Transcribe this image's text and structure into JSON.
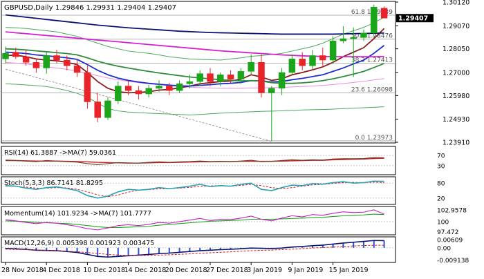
{
  "header": {
    "symbol": "GBPUSD,Daily",
    "ohlc": "1.29846 1.29931 1.29404 1.29407"
  },
  "current_price": "1.29407",
  "chart_data": {
    "type": "candlestick",
    "ylim": [
      1.2391,
      1.3012
    ],
    "grid": false,
    "price_ticks": [
      "1.30120",
      "1.29070",
      "1.28050",
      "1.27000",
      "1.25980",
      "1.24930",
      "1.23910"
    ],
    "date_labels": [
      "28 Nov 2018",
      "4 Dec 2018",
      "10 Dec 2018",
      "14 Dec 2018",
      "20 Dec 2018",
      "27 Dec 2018",
      "3 Jan 2019",
      "9 Jan 2019",
      "15 Jan 2019"
    ],
    "date_label_index": [
      0,
      4,
      8,
      12,
      16,
      20,
      24,
      28,
      32
    ],
    "candles": [
      {
        "o": 1.276,
        "h": 1.2815,
        "l": 1.274,
        "c": 1.2785
      },
      {
        "o": 1.279,
        "h": 1.281,
        "l": 1.276,
        "c": 1.277
      },
      {
        "o": 1.277,
        "h": 1.28,
        "l": 1.273,
        "c": 1.2745
      },
      {
        "o": 1.2745,
        "h": 1.276,
        "l": 1.27,
        "c": 1.272
      },
      {
        "o": 1.272,
        "h": 1.279,
        "l": 1.2695,
        "c": 1.2775
      },
      {
        "o": 1.2775,
        "h": 1.28,
        "l": 1.274,
        "c": 1.2755
      },
      {
        "o": 1.2755,
        "h": 1.2775,
        "l": 1.271,
        "c": 1.273
      },
      {
        "o": 1.273,
        "h": 1.276,
        "l": 1.268,
        "c": 1.27
      },
      {
        "o": 1.27,
        "h": 1.273,
        "l": 1.254,
        "c": 1.257
      },
      {
        "o": 1.257,
        "h": 1.261,
        "l": 1.248,
        "c": 1.25
      },
      {
        "o": 1.25,
        "h": 1.259,
        "l": 1.249,
        "c": 1.2575
      },
      {
        "o": 1.2575,
        "h": 1.266,
        "l": 1.256,
        "c": 1.264
      },
      {
        "o": 1.264,
        "h": 1.2665,
        "l": 1.26,
        "c": 1.262
      },
      {
        "o": 1.262,
        "h": 1.264,
        "l": 1.258,
        "c": 1.2605
      },
      {
        "o": 1.2605,
        "h": 1.2645,
        "l": 1.259,
        "c": 1.263
      },
      {
        "o": 1.263,
        "h": 1.2665,
        "l": 1.2615,
        "c": 1.264
      },
      {
        "o": 1.264,
        "h": 1.2655,
        "l": 1.26,
        "c": 1.262
      },
      {
        "o": 1.262,
        "h": 1.2665,
        "l": 1.261,
        "c": 1.265
      },
      {
        "o": 1.265,
        "h": 1.269,
        "l": 1.263,
        "c": 1.266
      },
      {
        "o": 1.266,
        "h": 1.271,
        "l": 1.264,
        "c": 1.2695
      },
      {
        "o": 1.2695,
        "h": 1.272,
        "l": 1.264,
        "c": 1.266
      },
      {
        "o": 1.266,
        "h": 1.27,
        "l": 1.264,
        "c": 1.269
      },
      {
        "o": 1.269,
        "h": 1.271,
        "l": 1.265,
        "c": 1.267
      },
      {
        "o": 1.267,
        "h": 1.272,
        "l": 1.265,
        "c": 1.2705
      },
      {
        "o": 1.2705,
        "h": 1.278,
        "l": 1.269,
        "c": 1.2745
      },
      {
        "o": 1.2745,
        "h": 1.278,
        "l": 1.259,
        "c": 1.261
      },
      {
        "o": 1.261,
        "h": 1.264,
        "l": 1.2395,
        "c": 1.263
      },
      {
        "o": 1.263,
        "h": 1.272,
        "l": 1.26,
        "c": 1.27
      },
      {
        "o": 1.27,
        "h": 1.278,
        "l": 1.269,
        "c": 1.276
      },
      {
        "o": 1.276,
        "h": 1.279,
        "l": 1.271,
        "c": 1.273
      },
      {
        "o": 1.273,
        "h": 1.28,
        "l": 1.271,
        "c": 1.2775
      },
      {
        "o": 1.2775,
        "h": 1.281,
        "l": 1.273,
        "c": 1.2755
      },
      {
        "o": 1.2755,
        "h": 1.286,
        "l": 1.274,
        "c": 1.284
      },
      {
        "o": 1.284,
        "h": 1.2905,
        "l": 1.283,
        "c": 1.285
      },
      {
        "o": 1.285,
        "h": 1.29,
        "l": 1.268,
        "c": 1.2855
      },
      {
        "o": 1.2855,
        "h": 1.289,
        "l": 1.284,
        "c": 1.2875
      },
      {
        "o": 1.2875,
        "h": 1.3,
        "l": 1.286,
        "c": 1.299
      },
      {
        "o": 1.2985,
        "h": 1.2993,
        "l": 1.294,
        "c": 1.2941
      }
    ],
    "fibonacci": [
      {
        "label": "61.8 1.29539",
        "price": 1.29539
      },
      {
        "label": "50.0 1.28476",
        "price": 1.28476
      },
      {
        "label": "38.2 1.27413",
        "price": 1.27413
      },
      {
        "label": "23.6 1.26098",
        "price": 1.26098
      },
      {
        "label": "0.0 1.23973",
        "price": 1.23973
      }
    ],
    "moving_averages": [
      {
        "color": "#8b1a1a",
        "values": [
          1.2775,
          1.2777,
          1.277,
          1.276,
          1.2755,
          1.2752,
          1.2745,
          1.2735,
          1.27,
          1.266,
          1.263,
          1.2615,
          1.261,
          1.2612,
          1.2615,
          1.2622,
          1.2625,
          1.2632,
          1.264,
          1.265,
          1.2655,
          1.266,
          1.2662,
          1.267,
          1.269,
          1.268,
          1.2665,
          1.2672,
          1.269,
          1.27,
          1.2712,
          1.2725,
          1.2745,
          1.277,
          1.279,
          1.281,
          1.285,
          1.2895
        ]
      },
      {
        "color": "#1c2fc9",
        "values": [
          1.279,
          1.2788,
          1.2784,
          1.2778,
          1.2774,
          1.277,
          1.2765,
          1.2758,
          1.2735,
          1.271,
          1.269,
          1.2675,
          1.2665,
          1.2658,
          1.2652,
          1.2648,
          1.2644,
          1.2641,
          1.264,
          1.2643,
          1.2646,
          1.265,
          1.2652,
          1.2656,
          1.2664,
          1.2663,
          1.2658,
          1.266,
          1.2668,
          1.2674,
          1.2682,
          1.269,
          1.2705,
          1.272,
          1.2738,
          1.2755,
          1.2785,
          1.282
        ]
      },
      {
        "color": "#2e8b3a",
        "values": [
          1.2805,
          1.2803,
          1.28,
          1.2796,
          1.2792,
          1.2788,
          1.2784,
          1.2778,
          1.2765,
          1.275,
          1.2738,
          1.2728,
          1.272,
          1.2712,
          1.2705,
          1.2698,
          1.2692,
          1.2686,
          1.268,
          1.2676,
          1.2672,
          1.2668,
          1.2665,
          1.2663,
          1.2664,
          1.2662,
          1.2655,
          1.2652,
          1.2652,
          1.2654,
          1.2658,
          1.2664,
          1.2672,
          1.2682,
          1.2693,
          1.2705,
          1.2722,
          1.274
        ]
      },
      {
        "color": "#d61fd0",
        "values": [
          1.288,
          1.2876,
          1.2872,
          1.2868,
          1.2864,
          1.286,
          1.2856,
          1.2852,
          1.2848,
          1.2844,
          1.284,
          1.2836,
          1.2832,
          1.2828,
          1.2824,
          1.282,
          1.2816,
          1.2812,
          1.2808,
          1.2804,
          1.28,
          1.2796,
          1.2793,
          1.279,
          1.2787,
          1.2784,
          1.2781,
          1.2778,
          1.2776,
          1.2774,
          1.2772,
          1.2771,
          1.277,
          1.277,
          1.277,
          1.277,
          1.277,
          1.2771
        ]
      },
      {
        "color": "#0a1470",
        "values": [
          1.2955,
          1.295,
          1.2945,
          1.294,
          1.2935,
          1.293,
          1.2925,
          1.292,
          1.2915,
          1.291,
          1.2906,
          1.2902,
          1.2898,
          1.2895,
          1.2892,
          1.2889,
          1.2886,
          1.2883,
          1.2881,
          1.2879,
          1.2877,
          1.2876,
          1.2875,
          1.2874,
          1.2873,
          1.2872,
          1.2871,
          1.287,
          1.287,
          1.287,
          1.287,
          1.287,
          1.287,
          1.2871,
          1.2872,
          1.2873,
          1.2874,
          1.2875
        ]
      }
    ],
    "bollinger_bands": [
      {
        "color": "#e98de3",
        "values": [
          1.2745,
          1.2742,
          1.2738,
          1.2732,
          1.2726,
          1.272,
          1.2714,
          1.2706,
          1.2696,
          1.2686,
          1.2676,
          1.2668,
          1.2661,
          1.2655,
          1.265,
          1.2646,
          1.2642,
          1.2638,
          1.2635,
          1.2633,
          1.2631,
          1.263,
          1.263,
          1.263,
          1.2631,
          1.2632,
          1.2633,
          1.2634,
          1.2636,
          1.2638,
          1.264,
          1.2643,
          1.2647,
          1.2651,
          1.2656,
          1.2661,
          1.2667,
          1.2673
        ]
      },
      {
        "color": "#4aa85a",
        "values": [
          1.29,
          1.2898,
          1.2895,
          1.289,
          1.2885,
          1.288,
          1.287,
          1.286,
          1.2845,
          1.283,
          1.2815,
          1.2805,
          1.2795,
          1.279,
          1.2785,
          1.2778,
          1.277,
          1.2765,
          1.276,
          1.2758,
          1.2757,
          1.2755,
          1.276,
          1.2765,
          1.2772,
          1.2775,
          1.278,
          1.2785,
          1.2795,
          1.2805,
          1.2815,
          1.283,
          1.285,
          1.287,
          1.2885,
          1.29,
          1.292,
          1.2945
        ]
      },
      {
        "color": "#4aa85a",
        "values": [
          1.265,
          1.2648,
          1.2645,
          1.2642,
          1.2638,
          1.263,
          1.262,
          1.2608,
          1.259,
          1.2565,
          1.254,
          1.253,
          1.2525,
          1.2522,
          1.252,
          1.2518,
          1.2516,
          1.2514,
          1.2512,
          1.2514,
          1.2517,
          1.252,
          1.2522,
          1.2524,
          1.2526,
          1.2528,
          1.2529,
          1.253,
          1.2532,
          1.2534,
          1.2535,
          1.2536,
          1.2538,
          1.254,
          1.2542,
          1.2544,
          1.2546,
          1.2548
        ]
      }
    ],
    "trendline": {
      "from_index": 0,
      "from_price": 1.2715,
      "to_index": 26,
      "to_price": 1.2395
    },
    "indicators": {
      "rsi": {
        "label": "RSI(14) 61.3887 ->MA(7) 59.0361",
        "ticks": [
          "70",
          "30"
        ],
        "ylim": [
          0,
          100
        ],
        "levels": [
          70,
          30
        ],
        "rsi_values": [
          52,
          50,
          48,
          46,
          50,
          48,
          46,
          44,
          38,
          34,
          38,
          42,
          41,
          40,
          43,
          45,
          43,
          45,
          46,
          48,
          46,
          47,
          46,
          48,
          51,
          46,
          47,
          50,
          53,
          51,
          53,
          52,
          56,
          57,
          57,
          58,
          62,
          61
        ],
        "ma_values": [
          50,
          50,
          49,
          48,
          48,
          48,
          47,
          46,
          45,
          43,
          42,
          41,
          40,
          40,
          41,
          42,
          42,
          43,
          44,
          45,
          45,
          46,
          46,
          47,
          47,
          47,
          47,
          48,
          49,
          50,
          51,
          51,
          53,
          54,
          55,
          56,
          58,
          59
        ]
      },
      "stochastic": {
        "label": "Stoch(5,3,3) 86.7141 81.8295",
        "ticks": [
          "80",
          "20"
        ],
        "ylim": [
          0,
          100
        ],
        "levels": [
          80,
          20
        ],
        "k_values": [
          70,
          68,
          60,
          55,
          62,
          65,
          58,
          50,
          30,
          20,
          28,
          45,
          55,
          52,
          55,
          62,
          58,
          62,
          68,
          75,
          66,
          70,
          68,
          75,
          80,
          55,
          50,
          62,
          72,
          70,
          78,
          76,
          82,
          86,
          80,
          82,
          88,
          87
        ],
        "d_values": [
          68,
          67,
          64,
          60,
          60,
          62,
          61,
          55,
          45,
          33,
          26,
          32,
          44,
          52,
          54,
          57,
          58,
          60,
          63,
          67,
          69,
          70,
          68,
          71,
          75,
          70,
          62,
          58,
          62,
          68,
          73,
          75,
          79,
          82,
          83,
          82,
          84,
          82
        ]
      },
      "momentum": {
        "label": "Momentum(14) 101.9234 ->MA(7) 101.7777",
        "ticks": [
          "102.9578",
          "100",
          "97.472"
        ],
        "ylim": [
          97.0,
          103.5
        ],
        "levels": [
          100
        ],
        "mom_values": [
          100.5,
          100.2,
          99.8,
          99.5,
          99.8,
          99.6,
          99.2,
          98.8,
          98.2,
          97.9,
          98.4,
          99.0,
          99.2,
          99.0,
          99.3,
          99.8,
          99.6,
          100.0,
          100.4,
          100.8,
          100.3,
          100.6,
          100.5,
          100.9,
          101.4,
          100.6,
          100.2,
          100.9,
          101.5,
          101.2,
          101.8,
          101.6,
          102.1,
          102.5,
          102.3,
          102.4,
          103.0,
          101.9
        ],
        "ma_values": [
          100.2,
          100.1,
          100.0,
          99.8,
          99.7,
          99.6,
          99.5,
          99.3,
          99.0,
          98.7,
          98.5,
          98.5,
          98.6,
          98.7,
          98.8,
          99.1,
          99.3,
          99.5,
          99.7,
          99.9,
          100.1,
          100.2,
          100.3,
          100.4,
          100.6,
          100.6,
          100.6,
          100.7,
          100.8,
          100.9,
          101.0,
          101.1,
          101.3,
          101.5,
          101.6,
          101.7,
          101.9,
          101.8
        ]
      },
      "macd": {
        "label": "MACD(12,26,9) 0.005398 0.001923 0.003475",
        "ticks": [
          "0.00609",
          "0.00",
          "-0.009138"
        ],
        "ylim": [
          -0.01,
          0.0072
        ],
        "histogram": [
          -0.0005,
          -0.0008,
          -0.0012,
          -0.0018,
          -0.002,
          -0.0022,
          -0.0028,
          -0.0035,
          -0.005,
          -0.0065,
          -0.007,
          -0.0065,
          -0.006,
          -0.0055,
          -0.005,
          -0.0044,
          -0.004,
          -0.0034,
          -0.0028,
          -0.0022,
          -0.0018,
          -0.0014,
          -0.0011,
          -0.0007,
          -0.0002,
          -0.0004,
          -0.0006,
          -0.0002,
          0.0006,
          0.001,
          0.0016,
          0.002,
          0.0028,
          0.0036,
          0.0042,
          0.0048,
          0.0055,
          0.0054
        ],
        "signal": [
          -0.001,
          -0.0012,
          -0.0014,
          -0.0017,
          -0.002,
          -0.0023,
          -0.0026,
          -0.003,
          -0.0036,
          -0.0043,
          -0.005,
          -0.0055,
          -0.0058,
          -0.0058,
          -0.0057,
          -0.0055,
          -0.0053,
          -0.0049,
          -0.0046,
          -0.0042,
          -0.0038,
          -0.0034,
          -0.003,
          -0.0026,
          -0.0022,
          -0.0019,
          -0.0017,
          -0.0014,
          -0.001,
          -0.0006,
          -0.0002,
          0.0002,
          0.0006,
          0.001,
          0.0014,
          0.0017,
          0.0019,
          0.0019
        ]
      }
    }
  }
}
